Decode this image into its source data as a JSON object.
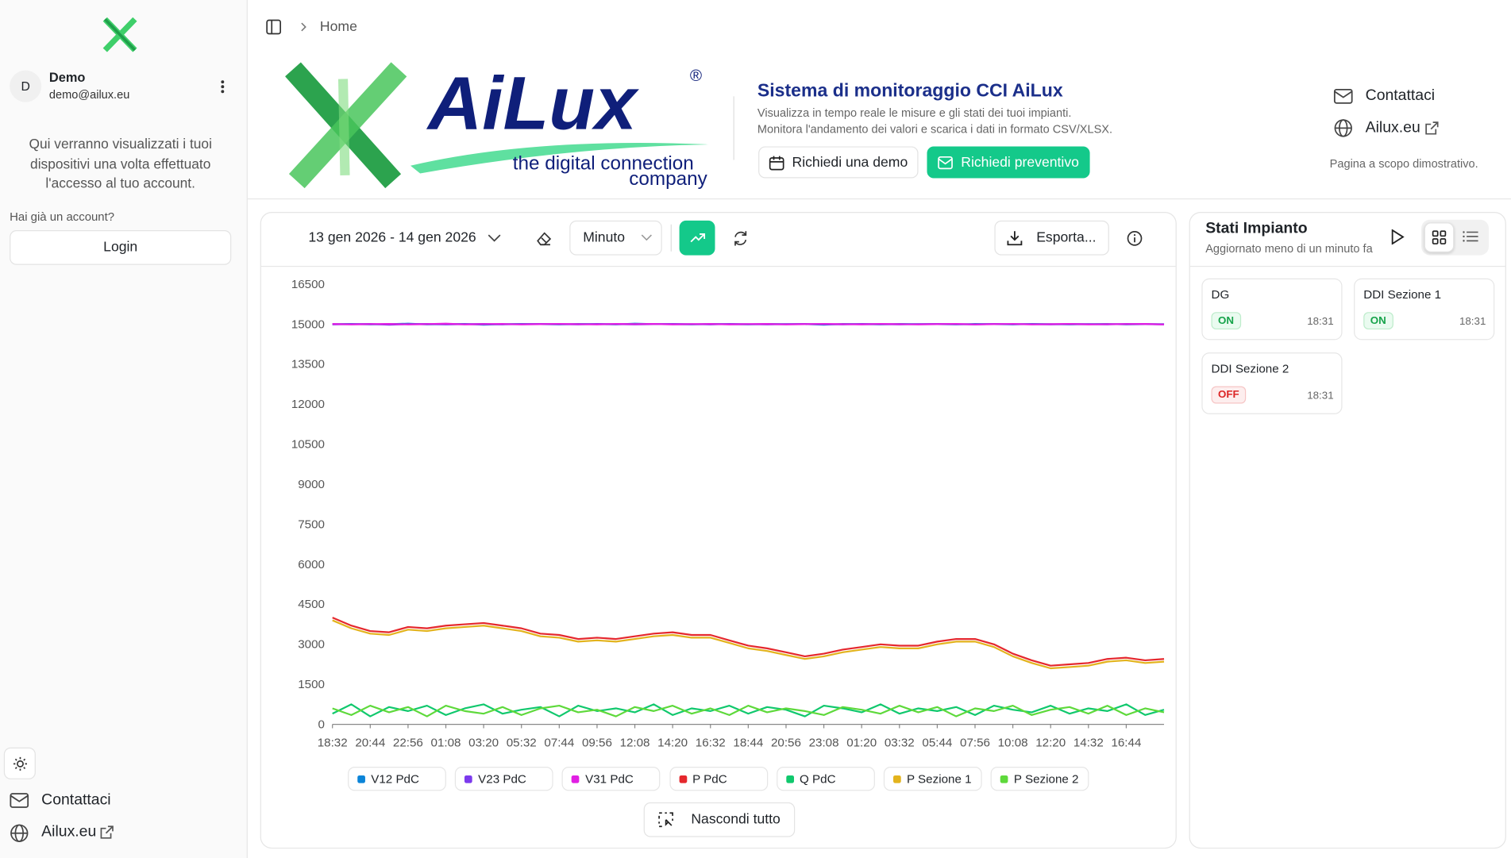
{
  "sidebar": {
    "user_initial": "D",
    "user_name": "Demo",
    "user_email": "demo@ailux.eu",
    "info": "Qui verranno visualizzati i tuoi dispositivi una volta effettuato l'accesso al tuo account.",
    "prompt": "Hai già un account?",
    "login": "Login",
    "links": [
      "Contattaci",
      "Ailux.eu"
    ]
  },
  "breadcrumb": "Home",
  "header": {
    "brand": "AiLux",
    "registered": "®",
    "tagline_1": "the digital connection",
    "tagline_2": "company",
    "title": "Sistema di monitoraggio CCI AiLux",
    "subtitle_1": "Visualizza in tempo reale le misure e gli stati dei tuoi impianti.",
    "subtitle_2": "Monitora l'andamento dei valori e scarica i dati in formato CSV/XLSX.",
    "demo_button": "Richiedi una demo",
    "quote_button": "Richiedi preventivo",
    "links": [
      "Contattaci",
      "Ailux.eu"
    ],
    "note": "Pagina a scopo dimostrativo."
  },
  "toolbar": {
    "date_range": "13 gen 2026 - 14 gen 2026",
    "interval": "Minuto",
    "export": "Esporta..."
  },
  "chart_data": {
    "type": "line",
    "categories": [
      "18:32",
      null,
      "20:44",
      null,
      "22:56",
      null,
      "01:08",
      null,
      "03:20",
      null,
      "05:32",
      null,
      "07:44",
      null,
      "09:56",
      null,
      "12:08",
      null,
      "14:20",
      null,
      "16:32",
      null,
      "18:44",
      null,
      "20:56",
      null,
      "23:08",
      null,
      "01:20",
      null,
      "03:32",
      null,
      "05:44",
      null,
      "07:56",
      null,
      "10:08",
      null,
      "12:20",
      null,
      "14:32",
      null,
      "16:44",
      null,
      null
    ],
    "ylim": [
      0,
      16500
    ],
    "yticks": [
      0,
      1500,
      3000,
      4500,
      6000,
      7500,
      9000,
      10500,
      12000,
      13500,
      15000,
      16500
    ],
    "grid": false,
    "series": [
      {
        "name": "V12 PdC",
        "color": "#0b84d8",
        "values": [
          15000,
          15010,
          14990,
          15000,
          15020,
          14990,
          15000,
          15010,
          14980,
          15000,
          15010,
          15000,
          14990,
          15010,
          15000,
          14990,
          15020,
          15000,
          15000,
          14990,
          15010,
          15000,
          14990,
          15010,
          15000,
          15000,
          14980,
          15010,
          15000,
          14990,
          15010,
          15000,
          15000,
          14990,
          15010,
          15000,
          14990,
          15010,
          15000,
          14990,
          15000,
          15010,
          14990,
          15000,
          15000
        ]
      },
      {
        "name": "V23 PdC",
        "color": "#7c3aed",
        "values": [
          14990,
          15000,
          15010,
          14980,
          15000,
          15010,
          14990,
          15000,
          15010,
          14990,
          15000,
          15010,
          15000,
          14990,
          15010,
          15000,
          14990,
          15000,
          15010,
          15000,
          14990,
          15010,
          15000,
          14990,
          15000,
          15010,
          15000,
          14990,
          15010,
          15000,
          14990,
          15000,
          15010,
          15000,
          14990,
          15010,
          15000,
          15000,
          14990,
          15010,
          15000,
          14990,
          15010,
          15000,
          14990
        ]
      },
      {
        "name": "V31 PdC",
        "color": "#e11fe3",
        "values": [
          15010,
          14990,
          15000,
          15010,
          14990,
          15000,
          15020,
          14990,
          15000,
          15010,
          14990,
          15000,
          15010,
          15000,
          14990,
          15010,
          15000,
          15010,
          14990,
          15000,
          15010,
          14990,
          15000,
          15010,
          14990,
          15000,
          15010,
          15000,
          14990,
          15010,
          15000,
          14990,
          15000,
          15010,
          14990,
          15000,
          15010,
          14990,
          15000,
          15010,
          14990,
          15000,
          15000,
          15010,
          14990
        ]
      },
      {
        "name": "P PdC",
        "color": "#e5282d",
        "values": [
          4000,
          3700,
          3500,
          3450,
          3650,
          3600,
          3700,
          3750,
          3800,
          3700,
          3600,
          3400,
          3350,
          3200,
          3250,
          3200,
          3300,
          3400,
          3450,
          3350,
          3350,
          3150,
          2950,
          2850,
          2700,
          2550,
          2650,
          2800,
          2900,
          3000,
          2950,
          2950,
          3100,
          3200,
          3200,
          3000,
          2650,
          2400,
          2200,
          2250,
          2300,
          2450,
          2500,
          2400,
          2450
        ]
      },
      {
        "name": "Q PdC",
        "color": "#10c86d",
        "values": [
          400,
          750,
          300,
          650,
          500,
          700,
          350,
          600,
          750,
          400,
          550,
          650,
          300,
          700,
          500,
          600,
          450,
          750,
          350,
          600,
          500,
          700,
          400,
          650,
          550,
          300,
          700,
          600,
          450,
          750,
          400,
          600,
          500,
          650,
          350,
          700,
          550,
          450,
          700,
          400,
          600,
          500,
          750,
          350,
          550
        ]
      },
      {
        "name": "P Sezione 1",
        "color": "#e3b31d",
        "values": [
          3900,
          3600,
          3400,
          3350,
          3550,
          3500,
          3600,
          3650,
          3700,
          3600,
          3500,
          3300,
          3250,
          3100,
          3150,
          3100,
          3200,
          3300,
          3350,
          3250,
          3250,
          3050,
          2850,
          2750,
          2600,
          2450,
          2550,
          2700,
          2800,
          2900,
          2850,
          2850,
          3000,
          3100,
          3100,
          2900,
          2550,
          2300,
          2100,
          2150,
          2200,
          2350,
          2400,
          2300,
          2350
        ]
      },
      {
        "name": "P Sezione 2",
        "color": "#5ed93b",
        "values": [
          600,
          350,
          700,
          450,
          650,
          300,
          700,
          500,
          400,
          650,
          350,
          600,
          700,
          450,
          550,
          300,
          650,
          500,
          700,
          400,
          600,
          350,
          700,
          450,
          600,
          500,
          350,
          650,
          550,
          400,
          700,
          450,
          650,
          300,
          600,
          500,
          700,
          350,
          550,
          650,
          400,
          700,
          350,
          600,
          450
        ]
      }
    ]
  },
  "hide_all": "Nascondi tutto",
  "status": {
    "title": "Stati Impianto",
    "subtitle": "Aggiornato meno di un minuto fa",
    "items": [
      {
        "name": "DG",
        "state": "ON",
        "time": "18:31"
      },
      {
        "name": "DDI Sezione 1",
        "state": "ON",
        "time": "18:31"
      },
      {
        "name": "DDI Sezione 2",
        "state": "OFF",
        "time": "18:31"
      }
    ]
  }
}
